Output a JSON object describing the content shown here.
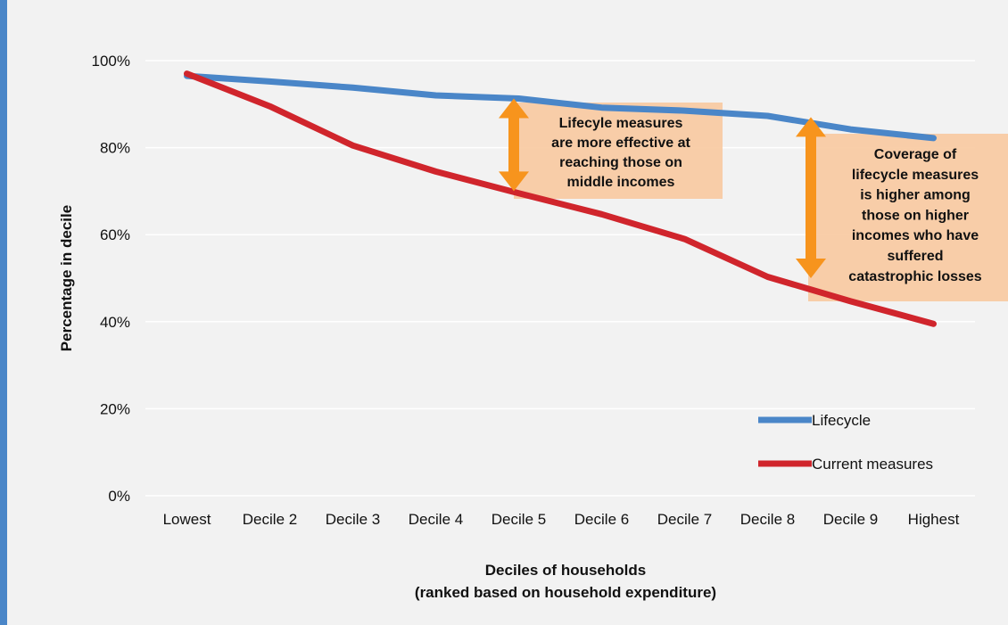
{
  "chart_data": {
    "type": "line",
    "categories": [
      "Lowest",
      "Decile 2",
      "Decile 3",
      "Decile 4",
      "Decile 5",
      "Decile 6",
      "Decile 7",
      "Decile 8",
      "Decile 9",
      "Highest"
    ],
    "series": [
      {
        "name": "Lifecycle",
        "color": "#4a86c8",
        "values": [
          96.5,
          95.2,
          93.8,
          92.0,
          91.3,
          89.2,
          88.5,
          87.3,
          84.2,
          82.2
        ]
      },
      {
        "name": "Current measures",
        "color": "#d0252c",
        "values": [
          97.0,
          89.5,
          80.5,
          74.5,
          69.5,
          64.7,
          59.0,
          50.3,
          44.7,
          39.5
        ]
      }
    ],
    "xlabel": [
      "Deciles of households",
      "(ranked based on household expenditure)"
    ],
    "ylabel": "Percentage in decile",
    "ylim": [
      0,
      100
    ],
    "yticks": [
      "0%",
      "20%",
      "40%",
      "60%",
      "80%",
      "100%"
    ],
    "grid": true,
    "legend_position": "bottom-right",
    "annotations": [
      {
        "lines": [
          "Lifecyle measures",
          "are more effective at",
          "reaching those on",
          "middle incomes"
        ],
        "arrow_from": 70.0,
        "arrow_to": 91.3,
        "category": "Decile 5"
      },
      {
        "lines": [
          "Coverage of",
          "lifecycle measures",
          "is higher among",
          "those on higher",
          "incomes who have",
          "suffered",
          "catastrophic losses"
        ],
        "arrow_from": 50.0,
        "arrow_to": 87.0,
        "category": "Decile 8"
      }
    ],
    "annotation_box_color": "#f8c9a0",
    "arrow_color": "#f7941d"
  }
}
